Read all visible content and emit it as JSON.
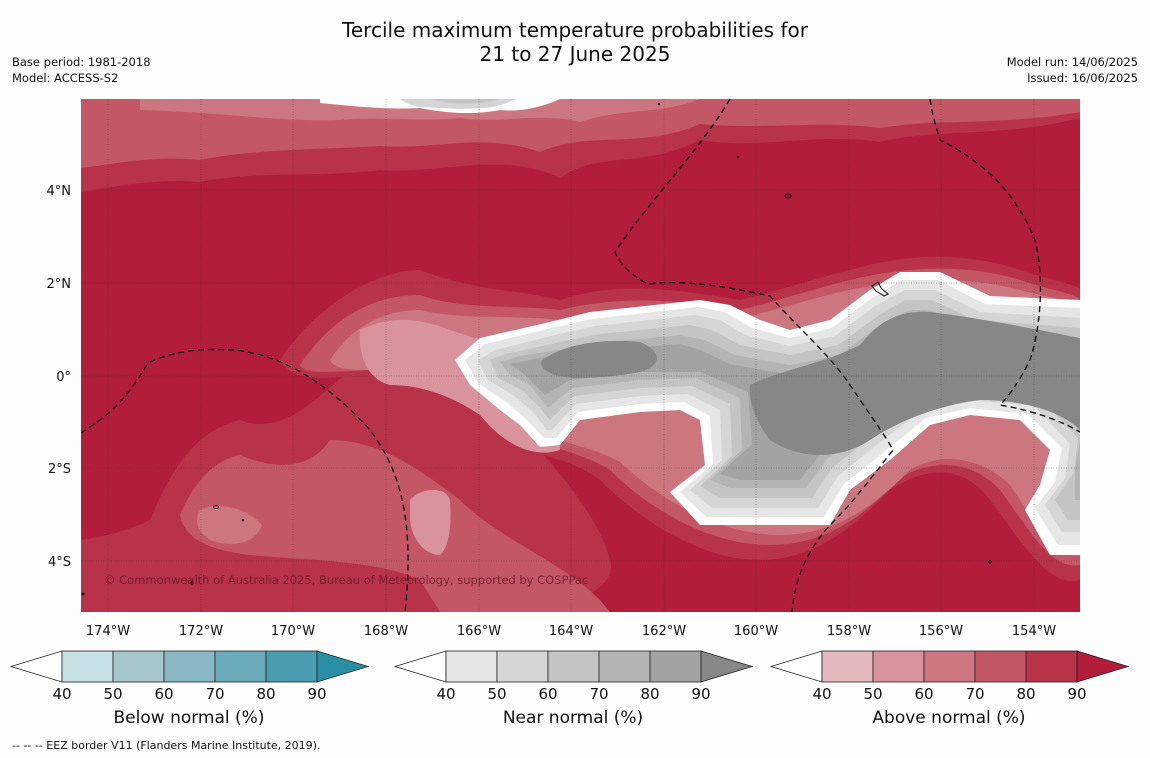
{
  "title": {
    "line1": "Tercile maximum temperature probabilities for",
    "line2": "21 to 27 June 2025"
  },
  "meta_left": {
    "base_period": "Base period: 1981-2018",
    "model": "Model: ACCESS-S2"
  },
  "meta_right": {
    "model_run": "Model run: 14/06/2025",
    "issued": "Issued: 16/06/2025"
  },
  "map": {
    "lon_ticks": [
      "174°W",
      "172°W",
      "170°W",
      "168°W",
      "166°W",
      "164°W",
      "162°W",
      "160°W",
      "158°W",
      "156°W",
      "154°W"
    ],
    "lat_ticks": [
      "4°N",
      "2°N",
      "0°",
      "2°S",
      "4°S"
    ],
    "copyright": "© Commonwealth of Australia 2025, Bureau of Meteorology, supported by COSPPac"
  },
  "colorbars": [
    {
      "label": "Below normal (%)",
      "ticks": [
        "40",
        "50",
        "60",
        "70",
        "80",
        "90"
      ],
      "colors": [
        "#ffffff",
        "#c8e1e7",
        "#a7c6cc",
        "#89b7c3",
        "#6aaabb",
        "#4a9cb0",
        "#2a8fa5"
      ]
    },
    {
      "label": "Near normal (%)",
      "ticks": [
        "40",
        "50",
        "60",
        "70",
        "80",
        "90"
      ],
      "colors": [
        "#ffffff",
        "#e6e6e6",
        "#d5d5d5",
        "#c4c4c4",
        "#b4b4b4",
        "#a3a3a3",
        "#878787"
      ]
    },
    {
      "label": "Above normal (%)",
      "ticks": [
        "40",
        "50",
        "60",
        "70",
        "80",
        "90"
      ],
      "colors": [
        "#ffffff",
        "#e3b9be",
        "#d8939c",
        "#cc7680",
        "#c45765",
        "#b8334a",
        "#b11d3a"
      ]
    }
  ],
  "footnote": "--  --  -- EEZ border V11 (Flanders Marine Institute, 2019)."
}
